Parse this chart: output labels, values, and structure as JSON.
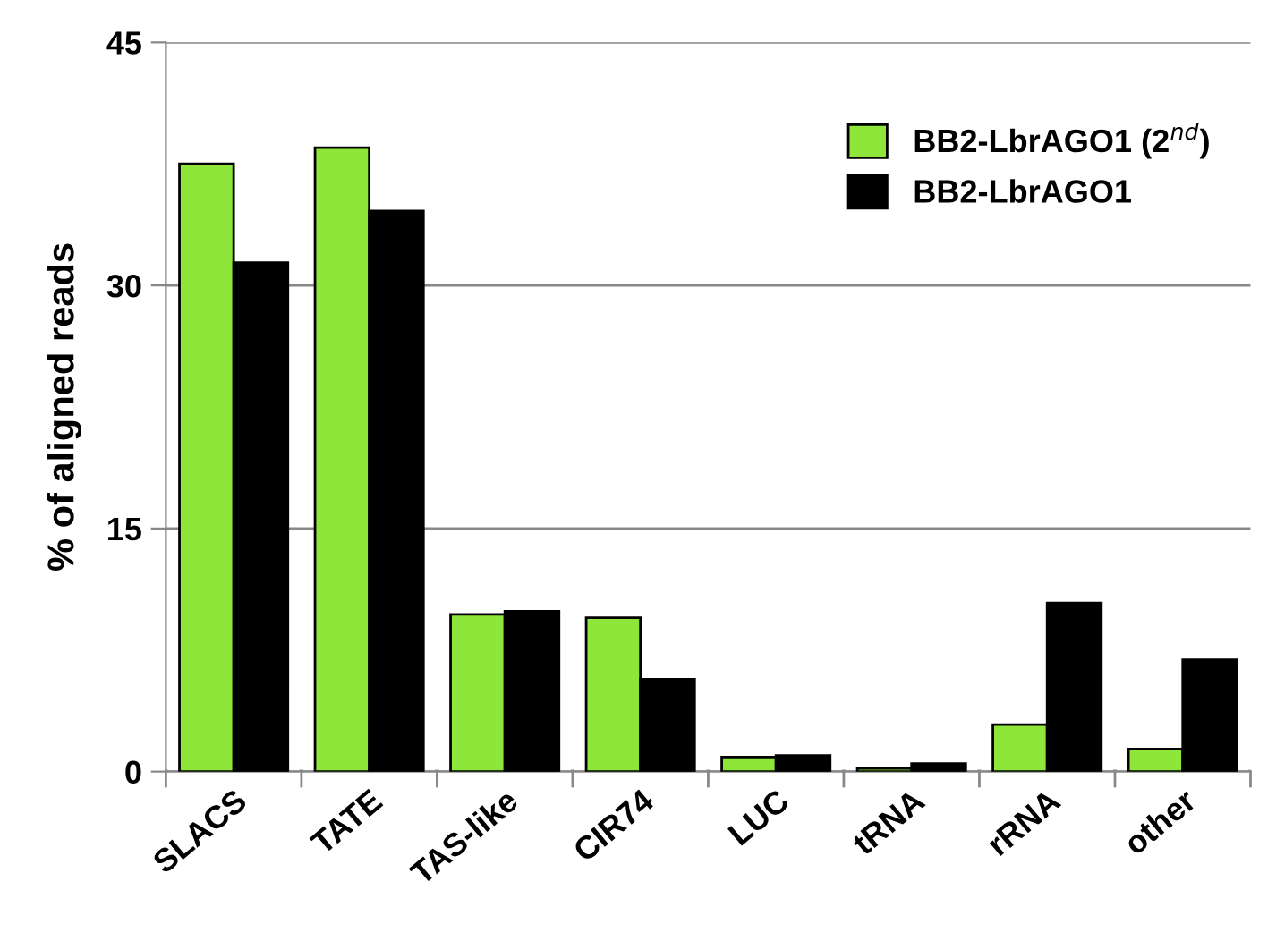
{
  "chart_data": {
    "type": "bar",
    "ylabel": "% of aligned reads",
    "categories": [
      "SLACS",
      "TATE",
      "TAS-like",
      "CIR74",
      "LUC",
      "tRNA",
      "rRNA",
      "other"
    ],
    "series": [
      {
        "name": "BB2-LbrAGO1 (2$^{nd}$)",
        "color": "#8ee63a",
        "values": [
          37.5,
          38.5,
          9.7,
          9.5,
          0.9,
          0.2,
          2.9,
          1.4
        ]
      },
      {
        "name": "BB2-LbrAGO1",
        "color": "#000000",
        "values": [
          31.4,
          34.6,
          9.9,
          5.7,
          1.0,
          0.5,
          10.4,
          6.9
        ]
      }
    ],
    "ylim": [
      0,
      45
    ],
    "yticks": [
      0,
      15,
      30,
      45
    ],
    "grid": "y",
    "legend": "top right"
  }
}
